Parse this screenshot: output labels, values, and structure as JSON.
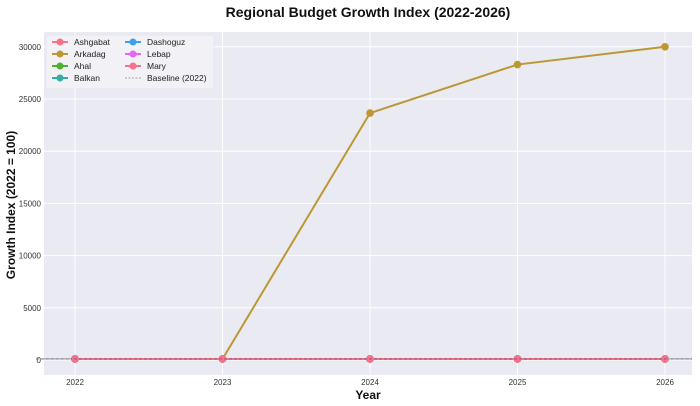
{
  "chart_data": {
    "type": "line",
    "title": "Regional Budget Growth Index (2022-2026)",
    "xlabel": "Year",
    "ylabel": "Growth Index (2022 = 100)",
    "x": [
      2022,
      2023,
      2024,
      2025,
      2026
    ],
    "x_tick_labels": [
      "2022",
      "2023",
      "2024",
      "2025",
      "2026"
    ],
    "ylim": [
      -1450,
      31400
    ],
    "y_ticks": [
      0,
      5000,
      10000,
      15000,
      20000,
      25000,
      30000
    ],
    "y_tick_labels": [
      "0",
      "5000",
      "10000",
      "15000",
      "20000",
      "25000",
      "30000"
    ],
    "grid": true,
    "legend_position": "top-left",
    "series": [
      {
        "name": "Ashgabat",
        "color": "#f77189",
        "values": [
          100,
          100,
          100,
          100,
          100
        ]
      },
      {
        "name": "Arkadag",
        "color": "#bb9832",
        "values": [
          100,
          100,
          23650,
          28300,
          30000
        ]
      },
      {
        "name": "Ahal",
        "color": "#50b131",
        "values": [
          100,
          100,
          100,
          100,
          100
        ]
      },
      {
        "name": "Balkan",
        "color": "#36ada4",
        "values": [
          100,
          100,
          100,
          100,
          100
        ]
      },
      {
        "name": "Dashoguz",
        "color": "#3ba3ec",
        "values": [
          100,
          100,
          100,
          100,
          100
        ]
      },
      {
        "name": "Lebap",
        "color": "#e866f4",
        "values": [
          100,
          100,
          100,
          100,
          100
        ]
      },
      {
        "name": "Mary",
        "color": "#f7718a",
        "values": [
          100,
          100,
          100,
          100,
          100
        ]
      }
    ],
    "baseline": {
      "name": "Baseline (2022)",
      "value": 100,
      "color": "#666666",
      "style": "dashed"
    }
  }
}
